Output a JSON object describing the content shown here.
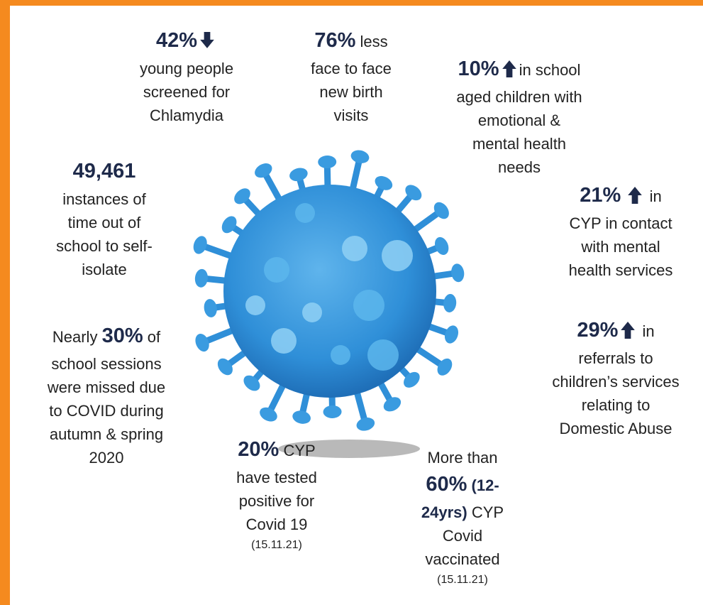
{
  "stats": [
    {
      "value": "42%",
      "lines": [
        "young people",
        "screened for",
        "Chlamydia"
      ]
    },
    {
      "value": "76%",
      "rest": "less",
      "lines": [
        "face to face",
        "new birth",
        "visits"
      ]
    },
    {
      "value": "10%",
      "rest": "in school",
      "lines": [
        "aged children with",
        "emotional &",
        "mental health",
        "needs"
      ]
    },
    {
      "value": "49,461",
      "lines": [
        "instances of",
        "time out of",
        "school to self-",
        "isolate"
      ]
    },
    {
      "value": "21%",
      "rest": "in",
      "lines": [
        "CYP in contact",
        "with mental",
        "health services"
      ]
    },
    {
      "lead": "Nearly",
      "value": "30%",
      "rest": "of",
      "lines": [
        "school sessions",
        "were missed due",
        "to COVID during",
        "autumn & spring",
        "2020"
      ]
    },
    {
      "value": "29%",
      "rest": "in",
      "lines": [
        "referrals to",
        "children’s services",
        "relating to",
        "Domestic Abuse"
      ]
    },
    {
      "value": "20%",
      "rest": "CYP",
      "lines": [
        "have tested",
        "positive for",
        "Covid 19"
      ],
      "note": "(15.11.21)"
    },
    {
      "lead": "More than",
      "value": "60%",
      "age": [
        "(12-",
        "24yrs)"
      ],
      "rest": "CYP",
      "lines": [
        "Covid",
        "vaccinated"
      ],
      "note": "(15.11.21)"
    }
  ]
}
